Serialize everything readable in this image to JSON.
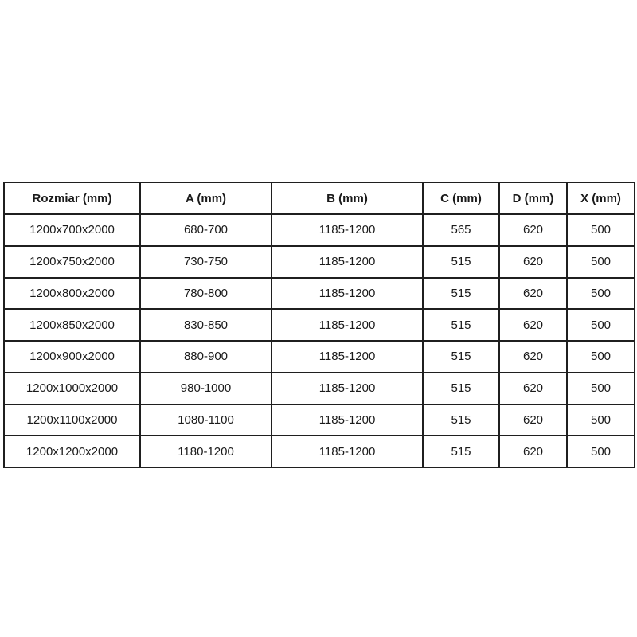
{
  "page": {
    "background_color": "#ffffff",
    "border_color": "#1f1f1f",
    "text_color": "#1a1a1a"
  },
  "table": {
    "headers": [
      "Rozmiar (mm)",
      "A (mm)",
      "B (mm)",
      "C (mm)",
      "D (mm)",
      "X (mm)"
    ],
    "rows": [
      [
        "1200x700x2000",
        "680-700",
        "1185-1200",
        "565",
        "620",
        "500"
      ],
      [
        "1200x750x2000",
        "730-750",
        "1185-1200",
        "515",
        "620",
        "500"
      ],
      [
        "1200x800x2000",
        "780-800",
        "1185-1200",
        "515",
        "620",
        "500"
      ],
      [
        "1200x850x2000",
        "830-850",
        "1185-1200",
        "515",
        "620",
        "500"
      ],
      [
        "1200x900x2000",
        "880-900",
        "1185-1200",
        "515",
        "620",
        "500"
      ],
      [
        "1200x1000x2000",
        "980-1000",
        "1185-1200",
        "515",
        "620",
        "500"
      ],
      [
        "1200x1100x2000",
        "1080-1100",
        "1185-1200",
        "515",
        "620",
        "500"
      ],
      [
        "1200x1200x2000",
        "1180-1200",
        "1185-1200",
        "515",
        "620",
        "500"
      ]
    ]
  }
}
